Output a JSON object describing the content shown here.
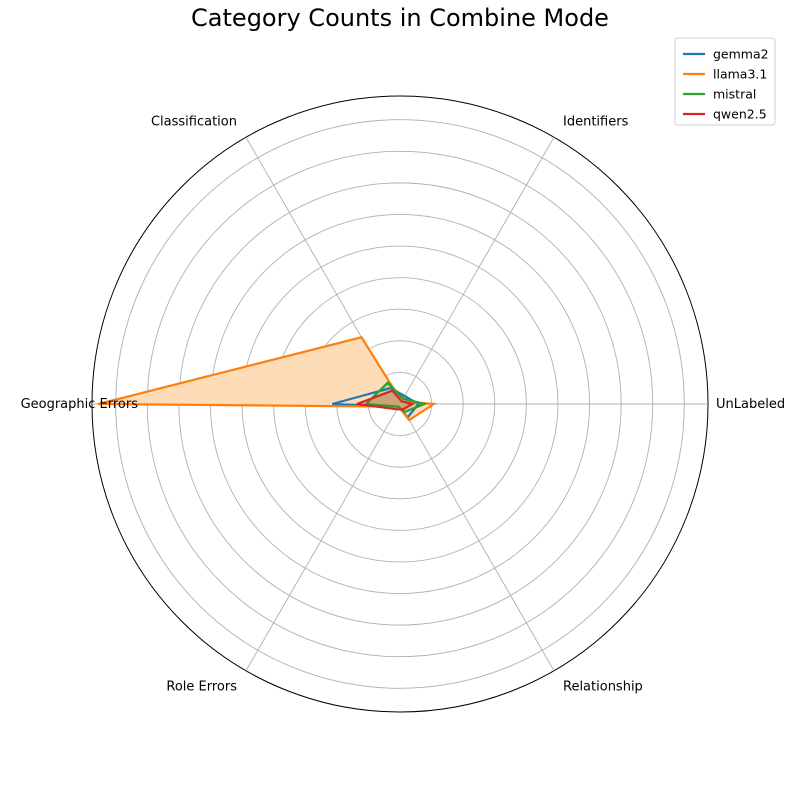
{
  "chart_data": {
    "type": "radar",
    "title": "Category Counts in Combine Mode",
    "categories": [
      "UnLabeled",
      "Relationship",
      "Role Errors",
      "Geographic Errors",
      "Classification",
      "Identifiers"
    ],
    "rmax": 100,
    "ring_count": 9,
    "grid": true,
    "legend_position": "top-right",
    "series": [
      {
        "name": "gemma2",
        "color": "#1f77b4",
        "values": [
          6,
          5,
          1,
          22,
          6,
          3
        ]
      },
      {
        "name": "llama3.1",
        "color": "#ff7f0e",
        "values": [
          11,
          6,
          1,
          98,
          25,
          1
        ]
      },
      {
        "name": "mistral",
        "color": "#2ca02c",
        "values": [
          8,
          3,
          1,
          11,
          8,
          2
        ]
      },
      {
        "name": "qwen2.5",
        "color": "#d62728",
        "values": [
          4,
          2,
          2,
          14,
          5,
          1
        ]
      }
    ],
    "fill_series": "llama3.1",
    "fill_color": "#ffdcb8"
  }
}
